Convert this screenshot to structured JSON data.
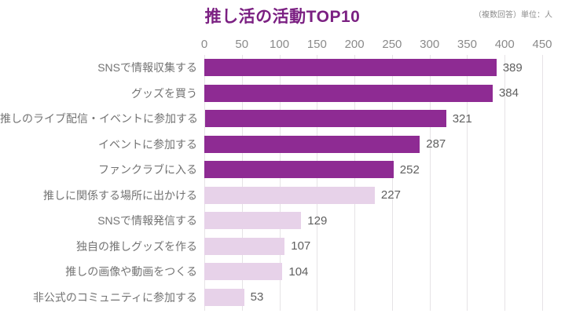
{
  "header": {
    "title": "推し活の活動TOP10",
    "note": "（複数回答）単位：人"
  },
  "chart_data": {
    "type": "bar",
    "orientation": "horizontal",
    "title": "推し活の活動TOP10",
    "subtitle_note": "（複数回答）単位：人",
    "categories": [
      "SNSで情報収集する",
      "グッズを買う",
      "推しのライブ配信・イベントに参加する",
      "イベントに参加する",
      "ファンクラブに入る",
      "推しに関係する場所に出かける",
      "SNSで情報発信する",
      "独自の推しグッズを作る",
      "推しの画像や動画をつくる",
      "非公式のコミュニティに参加する"
    ],
    "values": [
      389,
      384,
      321,
      287,
      252,
      227,
      129,
      107,
      104,
      53
    ],
    "bar_color_keys": [
      "dark",
      "dark",
      "dark",
      "dark",
      "dark",
      "light",
      "light",
      "light",
      "light",
      "light"
    ],
    "colors": {
      "dark": "#8e2b93",
      "light": "#e7d2e9",
      "title": "#7b2082",
      "grid": "#e6e3e6",
      "label_text": "#737373",
      "value_text": "#5f5f5f",
      "tick_text": "#8a8a8a"
    },
    "x_ticks": [
      0,
      50,
      100,
      150,
      200,
      250,
      300,
      350,
      400,
      450
    ],
    "xlim": [
      0,
      450
    ],
    "grid": true,
    "value_labels": true,
    "legend": "none"
  }
}
